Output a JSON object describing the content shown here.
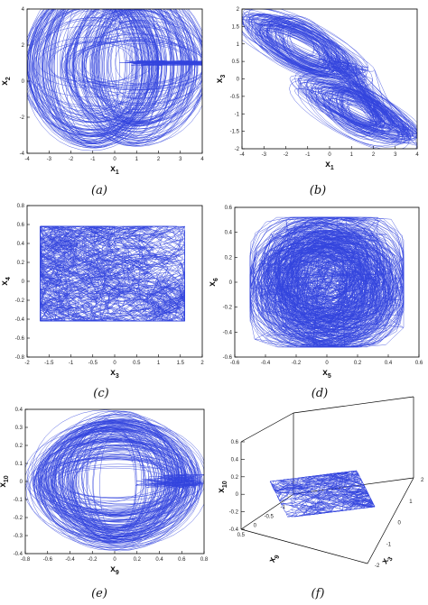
{
  "chart_data": [
    {
      "type": "line",
      "panel": "(a)",
      "xlabel": "x",
      "xlabel_sub": "1",
      "ylabel": "x",
      "ylabel_sub": "2",
      "xlim": [
        -4,
        4
      ],
      "ylim": [
        -4,
        4
      ],
      "xticks": [
        "-4",
        "-3",
        "-2",
        "-1",
        "0",
        "1",
        "2",
        "3",
        "4"
      ],
      "yticks": [
        "-4",
        "-2",
        "0",
        "2",
        "4"
      ],
      "color": "#3344dd"
    },
    {
      "type": "line",
      "panel": "(b)",
      "xlabel": "x",
      "xlabel_sub": "1",
      "ylabel": "x",
      "ylabel_sub": "3",
      "xlim": [
        -4,
        4
      ],
      "ylim": [
        -2,
        2
      ],
      "xticks": [
        "-4",
        "-3",
        "-2",
        "-1",
        "0",
        "1",
        "2",
        "3",
        "4"
      ],
      "yticks": [
        "-2",
        "-1.5",
        "-1",
        "-0.5",
        "0",
        "0.5",
        "1",
        "1.5",
        "2"
      ],
      "color": "#3344dd"
    },
    {
      "type": "line",
      "panel": "(c)",
      "xlabel": "x",
      "xlabel_sub": "3",
      "ylabel": "x",
      "ylabel_sub": "4",
      "xlim": [
        -2,
        2
      ],
      "ylim": [
        -0.8,
        0.8
      ],
      "xticks": [
        "-2",
        "-1.5",
        "-1",
        "-0.5",
        "0",
        "0.5",
        "1",
        "1.5",
        "2"
      ],
      "yticks": [
        "-0.8",
        "-0.6",
        "-0.4",
        "-0.2",
        "0",
        "0.2",
        "0.4",
        "0.6",
        "0.8"
      ],
      "color": "#3344dd"
    },
    {
      "type": "line",
      "panel": "(d)",
      "xlabel": "x",
      "xlabel_sub": "5",
      "ylabel": "x",
      "ylabel_sub": "6",
      "xlim": [
        -0.6,
        0.6
      ],
      "ylim": [
        -0.6,
        0.6
      ],
      "xticks": [
        "-0.6",
        "-0.4",
        "-0.2",
        "0",
        "0.2",
        "0.4",
        "0.6"
      ],
      "yticks": [
        "-0.6",
        "-0.4",
        "-0.2",
        "0",
        "0.2",
        "0.4",
        "0.6"
      ],
      "color": "#3344dd"
    },
    {
      "type": "line",
      "panel": "(e)",
      "xlabel": "x",
      "xlabel_sub": "9",
      "ylabel": "x",
      "ylabel_sub": "10",
      "xlim": [
        -0.8,
        0.8
      ],
      "ylim": [
        -0.4,
        0.4
      ],
      "xticks": [
        "-0.8",
        "-0.6",
        "-0.4",
        "-0.2",
        "0",
        "0.2",
        "0.4",
        "0.6",
        "0.8"
      ],
      "yticks": [
        "-0.4",
        "-0.3",
        "-0.2",
        "-0.1",
        "0",
        "0.1",
        "0.2",
        "0.3",
        "0.4"
      ],
      "color": "#3344dd"
    },
    {
      "type": "line",
      "panel": "(f)",
      "projection": "3d",
      "xlabel": "x",
      "xlabel_sub": "3",
      "ylabel": "x",
      "ylabel_sub": "9",
      "zlabel": "x",
      "zlabel_sub": "10",
      "zlim": [
        -0.4,
        0.6
      ],
      "zticks": [
        "-0.4",
        "-0.2",
        "0",
        "0.2",
        "0.4",
        "0.6"
      ],
      "yticks": [
        "-1",
        "-0.5",
        "0",
        "0.5"
      ],
      "xticks": [
        "-2",
        "-1",
        "0",
        "1",
        "2"
      ],
      "color": "#3344dd"
    }
  ]
}
